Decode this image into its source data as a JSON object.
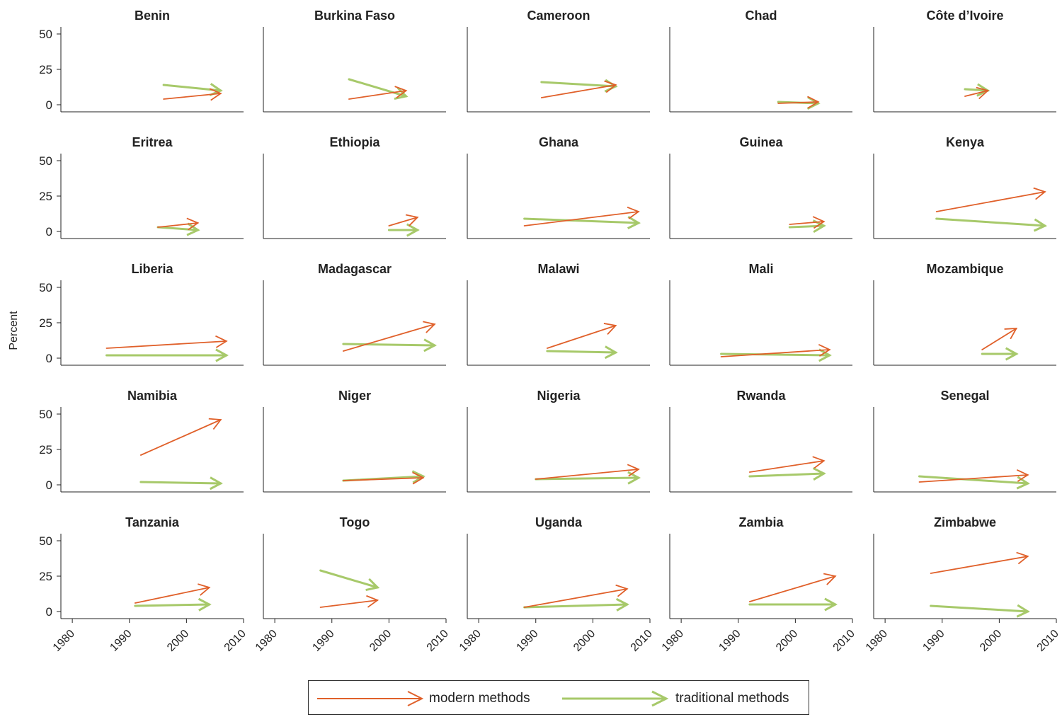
{
  "chart_data": {
    "type": "line",
    "ylabel": "Percent",
    "xticks": [
      1980,
      1990,
      2000,
      2010
    ],
    "yticks": [
      0,
      25,
      50
    ],
    "xlim": [
      1978,
      2010
    ],
    "ylim": [
      -5,
      55
    ],
    "series_names": [
      "modern methods",
      "traditional methods"
    ],
    "colors": {
      "modern": "#e0602a",
      "traditional": "#a7c96a",
      "axis": "#222222"
    },
    "panels": [
      {
        "country": "Benin",
        "modern": [
          [
            1996,
            4
          ],
          [
            2006,
            8
          ]
        ],
        "traditional": [
          [
            1996,
            14
          ],
          [
            2006,
            10
          ]
        ]
      },
      {
        "country": "Burkina Faso",
        "modern": [
          [
            1993,
            4
          ],
          [
            2003,
            10
          ]
        ],
        "traditional": [
          [
            1993,
            18
          ],
          [
            2003,
            6
          ]
        ]
      },
      {
        "country": "Cameroon",
        "modern": [
          [
            1991,
            5
          ],
          [
            2004,
            14
          ]
        ],
        "traditional": [
          [
            1991,
            16
          ],
          [
            2004,
            13
          ]
        ]
      },
      {
        "country": "Chad",
        "modern": [
          [
            1997,
            1
          ],
          [
            2004,
            2
          ]
        ],
        "traditional": [
          [
            1997,
            2
          ],
          [
            2004,
            1
          ]
        ]
      },
      {
        "country": "Côte d’Ivoire",
        "modern": [
          [
            1994,
            6
          ],
          [
            1998,
            10
          ]
        ],
        "traditional": [
          [
            1994,
            11
          ],
          [
            1998,
            10
          ]
        ]
      },
      {
        "country": "Eritrea",
        "modern": [
          [
            1995,
            3
          ],
          [
            2002,
            6
          ]
        ],
        "traditional": [
          [
            1995,
            3
          ],
          [
            2002,
            1
          ]
        ]
      },
      {
        "country": "Ethiopia",
        "modern": [
          [
            2000,
            4
          ],
          [
            2005,
            10
          ]
        ],
        "traditional": [
          [
            2000,
            1
          ],
          [
            2005,
            1
          ]
        ]
      },
      {
        "country": "Ghana",
        "modern": [
          [
            1988,
            4
          ],
          [
            2008,
            14
          ]
        ],
        "traditional": [
          [
            1988,
            9
          ],
          [
            2008,
            6
          ]
        ]
      },
      {
        "country": "Guinea",
        "modern": [
          [
            1999,
            5
          ],
          [
            2005,
            7
          ]
        ],
        "traditional": [
          [
            1999,
            3
          ],
          [
            2005,
            4
          ]
        ]
      },
      {
        "country": "Kenya",
        "modern": [
          [
            1989,
            14
          ],
          [
            2008,
            28
          ]
        ],
        "traditional": [
          [
            1989,
            9
          ],
          [
            2008,
            4
          ]
        ]
      },
      {
        "country": "Liberia",
        "modern": [
          [
            1986,
            7
          ],
          [
            2007,
            12
          ]
        ],
        "traditional": [
          [
            1986,
            2
          ],
          [
            2007,
            2
          ]
        ]
      },
      {
        "country": "Madagascar",
        "modern": [
          [
            1992,
            5
          ],
          [
            2008,
            24
          ]
        ],
        "traditional": [
          [
            1992,
            10
          ],
          [
            2008,
            9
          ]
        ]
      },
      {
        "country": "Malawi",
        "modern": [
          [
            1992,
            7
          ],
          [
            2004,
            23
          ]
        ],
        "traditional": [
          [
            1992,
            5
          ],
          [
            2004,
            4
          ]
        ]
      },
      {
        "country": "Mali",
        "modern": [
          [
            1987,
            1
          ],
          [
            2006,
            6
          ]
        ],
        "traditional": [
          [
            1987,
            3
          ],
          [
            2006,
            2
          ]
        ]
      },
      {
        "country": "Mozambique",
        "modern": [
          [
            1997,
            6
          ],
          [
            2003,
            21
          ]
        ],
        "traditional": [
          [
            1997,
            3
          ],
          [
            2003,
            3
          ]
        ]
      },
      {
        "country": "Namibia",
        "modern": [
          [
            1992,
            21
          ],
          [
            2006,
            46
          ]
        ],
        "traditional": [
          [
            1992,
            2
          ],
          [
            2006,
            1
          ]
        ]
      },
      {
        "country": "Niger",
        "modern": [
          [
            1992,
            3
          ],
          [
            2006,
            5
          ]
        ],
        "traditional": [
          [
            1992,
            3
          ],
          [
            2006,
            6
          ]
        ]
      },
      {
        "country": "Nigeria",
        "modern": [
          [
            1990,
            4
          ],
          [
            2008,
            11
          ]
        ],
        "traditional": [
          [
            1990,
            4
          ],
          [
            2008,
            5
          ]
        ]
      },
      {
        "country": "Rwanda",
        "modern": [
          [
            1992,
            9
          ],
          [
            2005,
            17
          ]
        ],
        "traditional": [
          [
            1992,
            6
          ],
          [
            2005,
            8
          ]
        ]
      },
      {
        "country": "Senegal",
        "modern": [
          [
            1986,
            2
          ],
          [
            2005,
            7
          ]
        ],
        "traditional": [
          [
            1986,
            6
          ],
          [
            2005,
            1
          ]
        ]
      },
      {
        "country": "Tanzania",
        "modern": [
          [
            1991,
            6
          ],
          [
            2004,
            17
          ]
        ],
        "traditional": [
          [
            1991,
            4
          ],
          [
            2004,
            5
          ]
        ]
      },
      {
        "country": "Togo",
        "modern": [
          [
            1988,
            3
          ],
          [
            1998,
            8
          ]
        ],
        "traditional": [
          [
            1988,
            29
          ],
          [
            1998,
            17
          ]
        ]
      },
      {
        "country": "Uganda",
        "modern": [
          [
            1988,
            3
          ],
          [
            2006,
            16
          ]
        ],
        "traditional": [
          [
            1988,
            3
          ],
          [
            2006,
            5
          ]
        ]
      },
      {
        "country": "Zambia",
        "modern": [
          [
            1992,
            7
          ],
          [
            2007,
            25
          ]
        ],
        "traditional": [
          [
            1992,
            5
          ],
          [
            2007,
            5
          ]
        ]
      },
      {
        "country": "Zimbabwe",
        "modern": [
          [
            1988,
            27
          ],
          [
            2005,
            39
          ]
        ],
        "traditional": [
          [
            1988,
            4
          ],
          [
            2005,
            0
          ]
        ]
      }
    ]
  }
}
